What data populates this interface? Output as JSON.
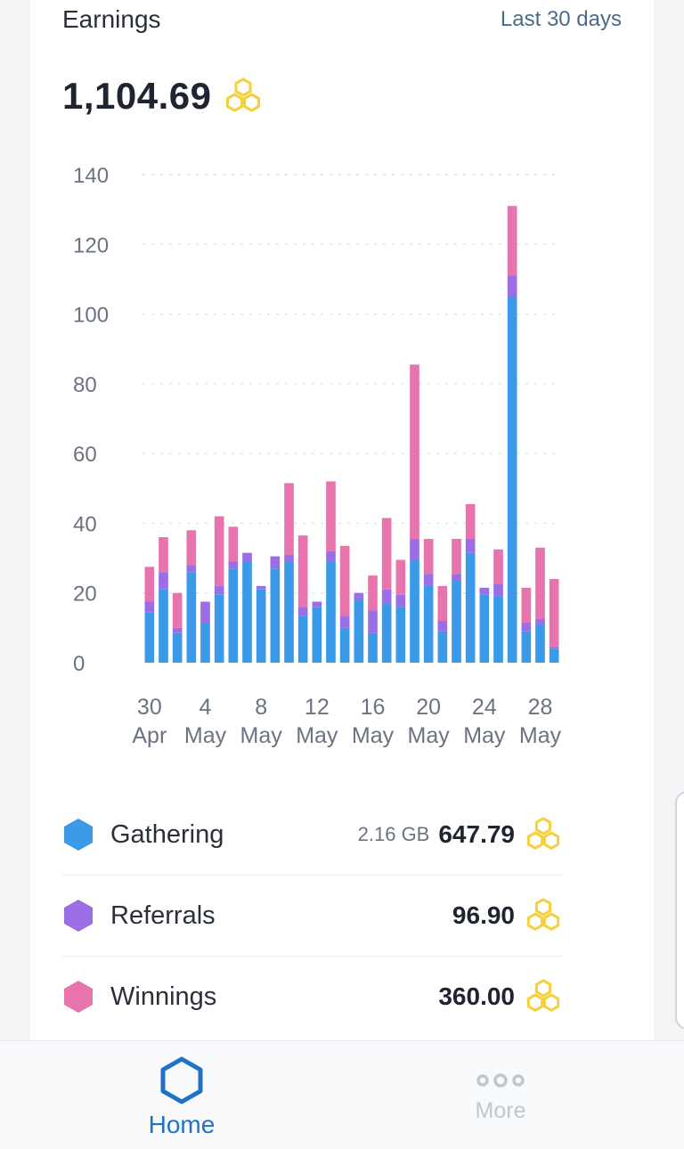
{
  "header": {
    "title": "Earnings",
    "period": "Last 30 days"
  },
  "total": {
    "value": "1,104.69",
    "icon": "honeycomb-icon"
  },
  "colors": {
    "gathering": "#3b9ae8",
    "referrals": "#9b6ee6",
    "winnings": "#e874ad",
    "honey": "#f4d03f",
    "nav_active": "#1f72c4"
  },
  "chart_data": {
    "type": "bar",
    "stacked": true,
    "ylim": [
      0,
      140
    ],
    "yticks": [
      0,
      20,
      40,
      60,
      80,
      100,
      120,
      140
    ],
    "grid": true,
    "x_tick_labels": [
      {
        "index": 0,
        "day": "30",
        "month": "Apr"
      },
      {
        "index": 4,
        "day": "4",
        "month": "May"
      },
      {
        "index": 8,
        "day": "8",
        "month": "May"
      },
      {
        "index": 12,
        "day": "12",
        "month": "May"
      },
      {
        "index": 16,
        "day": "16",
        "month": "May"
      },
      {
        "index": 20,
        "day": "20",
        "month": "May"
      },
      {
        "index": 24,
        "day": "24",
        "month": "May"
      },
      {
        "index": 28,
        "day": "28",
        "month": "May"
      }
    ],
    "categories": [
      "30 Apr",
      "1 May",
      "2 May",
      "3 May",
      "4 May",
      "5 May",
      "6 May",
      "7 May",
      "8 May",
      "9 May",
      "10 May",
      "11 May",
      "12 May",
      "13 May",
      "14 May",
      "15 May",
      "16 May",
      "17 May",
      "18 May",
      "19 May",
      "20 May",
      "21 May",
      "22 May",
      "23 May",
      "24 May",
      "25 May",
      "26 May",
      "27 May",
      "28 May",
      "29 May"
    ],
    "series": [
      {
        "name": "Gathering",
        "values": [
          14.5,
          21,
          8.5,
          26,
          11.5,
          19.5,
          27,
          29,
          21,
          27,
          29,
          13.5,
          16,
          29,
          10,
          18,
          8.5,
          17,
          16,
          29.5,
          22,
          9,
          23.5,
          31.5,
          19.5,
          19,
          105,
          9,
          11,
          4
        ]
      },
      {
        "name": "Referrals",
        "values": [
          3,
          5,
          1.5,
          2,
          6,
          2.5,
          2,
          2.5,
          1,
          3.5,
          2,
          2.5,
          1.5,
          3,
          3.5,
          2,
          6.5,
          4,
          3.5,
          6,
          3.5,
          3,
          2,
          4,
          2,
          3.5,
          6,
          2.5,
          1.5,
          0.5
        ]
      },
      {
        "name": "Winnings",
        "values": [
          10,
          10,
          10,
          10,
          0,
          20,
          10,
          0,
          0,
          0,
          20.5,
          20.5,
          0,
          20,
          20,
          0,
          10,
          20.5,
          10,
          50,
          10,
          10,
          10,
          10,
          0,
          10,
          20,
          10,
          20.5,
          19.5
        ]
      }
    ]
  },
  "legend": [
    {
      "key": "gathering",
      "label": "Gathering",
      "data": "2.16 GB",
      "value": "647.79"
    },
    {
      "key": "referrals",
      "label": "Referrals",
      "data": "",
      "value": "96.90"
    },
    {
      "key": "winnings",
      "label": "Winnings",
      "data": "",
      "value": "360.00"
    }
  ],
  "nav": {
    "home": {
      "label": "Home",
      "icon": "hexagon-icon"
    },
    "more": {
      "label": "More",
      "icon": "more-dots-icon"
    }
  }
}
